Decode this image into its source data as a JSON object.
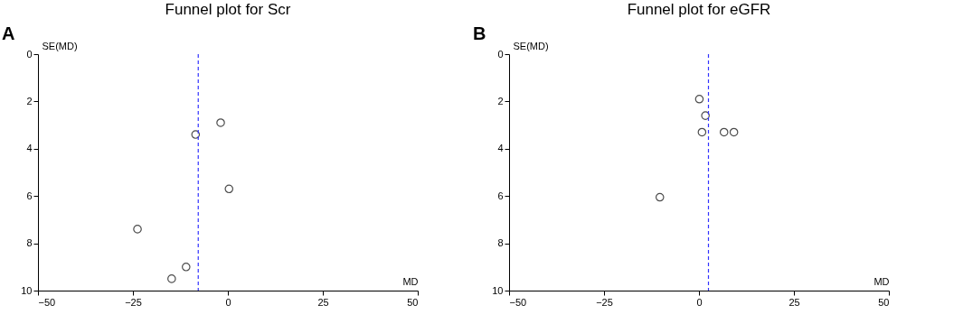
{
  "chart_data": [
    {
      "type": "scatter",
      "title": "Funnel plot for Scr",
      "xlabel": "MD",
      "ylabel": "SE(MD)",
      "annotations": [
        "A"
      ],
      "series": [
        {
          "color": "#000000",
          "x": [
            -1.9,
            -8.5,
            0.3,
            -23.8,
            -11.0,
            -14.8
          ],
          "values": [
            2.9,
            3.4,
            5.7,
            7.4,
            9.0,
            9.5
          ]
        }
      ],
      "xlim": [
        -50,
        50
      ],
      "xticks": [
        -50,
        -25,
        0,
        25,
        50
      ],
      "ylim": [
        10,
        0
      ],
      "yticks": [
        0,
        2,
        4,
        6,
        8,
        10
      ],
      "ref_lines": [
        {
          "axis": "x",
          "value": -7.8,
          "color": "#3333ff",
          "line_style": "dashed"
        }
      ],
      "marker": "circle",
      "grid": false
    },
    {
      "type": "scatter",
      "title": "Funnel plot for eGFR",
      "xlabel": "MD",
      "ylabel": "SE(MD)",
      "annotations": [
        "B"
      ],
      "series": [
        {
          "color": "#000000",
          "x": [
            0.1,
            1.7,
            0.8,
            6.6,
            9.2,
            -10.3
          ],
          "values": [
            1.9,
            2.6,
            3.3,
            3.3,
            3.3,
            6.05
          ]
        }
      ],
      "xlim": [
        -50,
        50
      ],
      "xticks": [
        -50,
        -25,
        0,
        25,
        50
      ],
      "ylim": [
        10,
        0
      ],
      "yticks": [
        0,
        2,
        4,
        6,
        8,
        10
      ],
      "ref_lines": [
        {
          "axis": "x",
          "value": 2.5,
          "color": "#3333ff",
          "line_style": "dashed"
        }
      ],
      "marker": "circle",
      "grid": false
    }
  ]
}
